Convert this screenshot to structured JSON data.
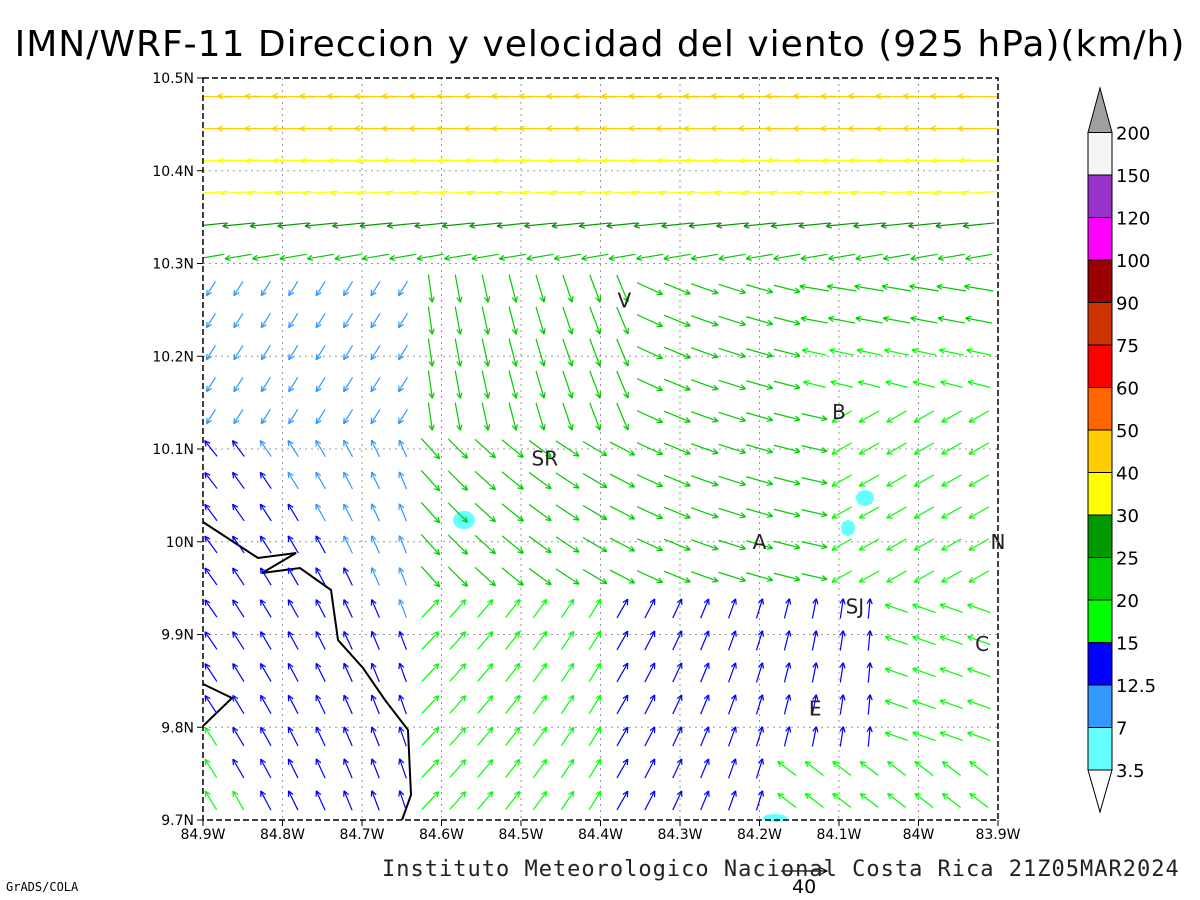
{
  "title": "IMN/WRF-11 Direccion y velocidad del viento (925 hPa)(km/h)",
  "footer": "Instituto Meteorologico Nacional Costa Rica 21Z05MAR2024",
  "software_label": "GrADS/COLA",
  "reference_vector": {
    "value": "40"
  },
  "map": {
    "lon_range": [
      -84.9,
      -83.9
    ],
    "lat_range": [
      9.7,
      10.5
    ],
    "x_ticks": [
      "84.9W",
      "84.8W",
      "84.7W",
      "84.6W",
      "84.5W",
      "84.4W",
      "84.3W",
      "84.2W",
      "84.1W",
      "84W",
      "83.9W"
    ],
    "y_ticks": [
      "10.5N",
      "10.4N",
      "10.3N",
      "10.2N",
      "10.1N",
      "10N",
      "9.9N",
      "9.8N",
      "9.7N"
    ],
    "gridlines": true,
    "cities": [
      {
        "label": "V",
        "lon": -84.37,
        "lat": 10.26
      },
      {
        "label": "SR",
        "lon": -84.47,
        "lat": 10.09
      },
      {
        "label": "B",
        "lon": -84.1,
        "lat": 10.14
      },
      {
        "label": "A",
        "lon": -84.2,
        "lat": 10.0
      },
      {
        "label": "N",
        "lon": -83.9,
        "lat": 10.0
      },
      {
        "label": "SJ",
        "lon": -84.08,
        "lat": 9.93
      },
      {
        "label": "C",
        "lon": -83.92,
        "lat": 9.89
      },
      {
        "label": "E",
        "lon": -84.13,
        "lat": 9.82
      }
    ]
  },
  "colorbar": {
    "labels": [
      "3.5",
      "7",
      "12.5",
      "15",
      "20",
      "25",
      "30",
      "40",
      "50",
      "60",
      "75",
      "90",
      "100",
      "120",
      "150",
      "200"
    ],
    "colors": [
      "#66ffff",
      "#3399ff",
      "#0000ff",
      "#00ff00",
      "#00cc00",
      "#009900",
      "#ffff00",
      "#ffcc00",
      "#ff6600",
      "#ff0000",
      "#cc3300",
      "#990000",
      "#ff00ff",
      "#9933cc",
      "#f5f5f5",
      "#a0a0a0"
    ]
  }
}
